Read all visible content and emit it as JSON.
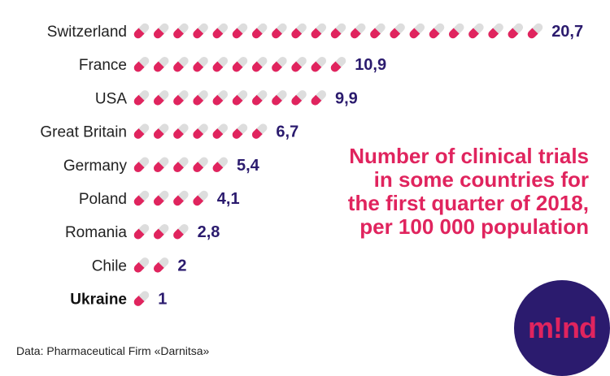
{
  "chart_data": {
    "type": "bar",
    "title": "Number of clinical trials in some countries for the first quarter of 2018, per 100 000 population",
    "categories": [
      "Switzerland",
      "France",
      "USA",
      "Great Britain",
      "Germany",
      "Poland",
      "Romania",
      "Chile",
      "Ukraine"
    ],
    "values": [
      20.7,
      10.9,
      9.9,
      6.7,
      5.4,
      4.1,
      2.8,
      2,
      1
    ],
    "value_labels": [
      "20,7",
      "10,9",
      "9,9",
      "6,7",
      "5,4",
      "4,1",
      "2,8",
      "2",
      "1"
    ],
    "highlight": "Ukraine",
    "icon": "pill-icon",
    "colors": {
      "pill": "#e0245e",
      "pill_light": "#dddddd",
      "value": "#2b1b6e",
      "title": "#e0245e"
    }
  },
  "source": "Data: Pharmaceutical Firm «Darnitsa»",
  "logo": {
    "text": "m!nd",
    "background": "#2b1b6e",
    "color": "#e0245e"
  }
}
